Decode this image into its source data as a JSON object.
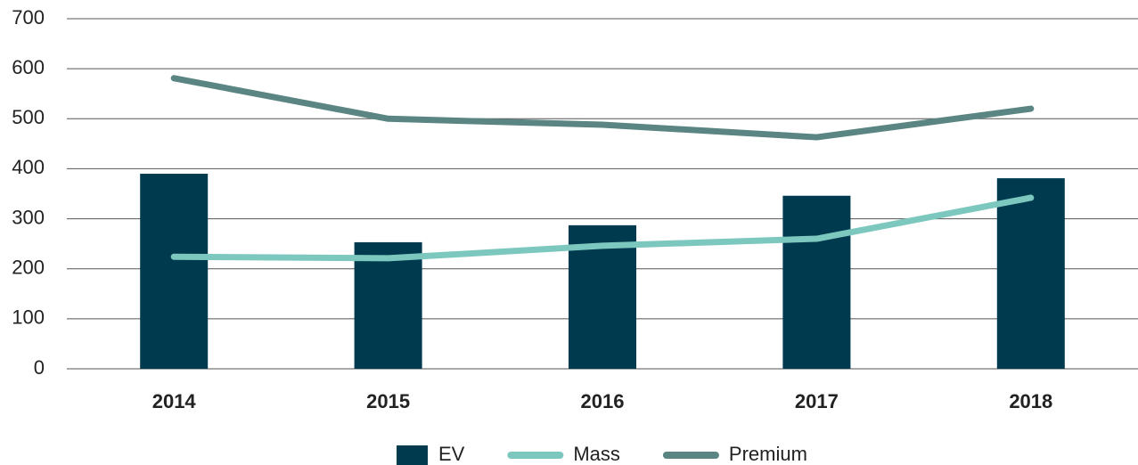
{
  "chart_data": {
    "type": "combo",
    "categories": [
      "2014",
      "2015",
      "2016",
      "2017",
      "2018"
    ],
    "series": [
      {
        "name": "EV",
        "type": "bar",
        "color": "#003a4f",
        "values": [
          390,
          253,
          287,
          346,
          381
        ]
      },
      {
        "name": "Mass",
        "type": "line",
        "color": "#7cc8bf",
        "values": [
          224,
          221,
          246,
          260,
          342
        ]
      },
      {
        "name": "Premium",
        "type": "line",
        "color": "#5a8583",
        "values": [
          581,
          500,
          488,
          463,
          520
        ]
      }
    ],
    "ylim": [
      0,
      700
    ],
    "yticks": [
      0,
      100,
      200,
      300,
      400,
      500,
      600,
      700
    ],
    "grid": true,
    "legend": "bottom"
  }
}
